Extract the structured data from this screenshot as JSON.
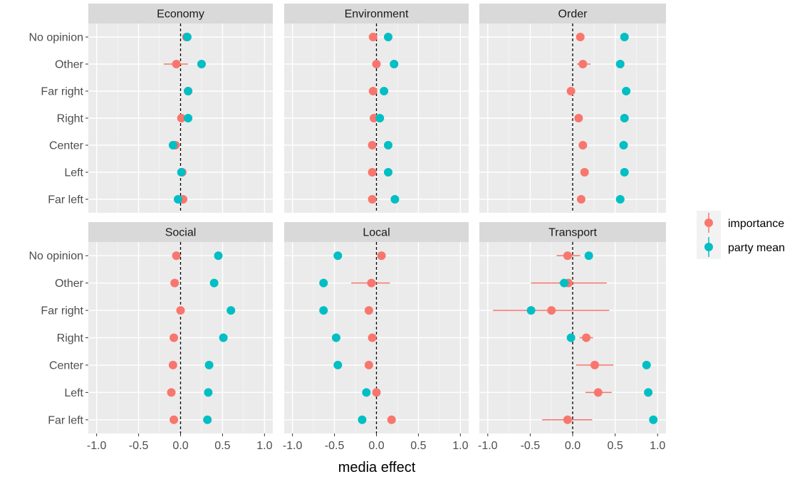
{
  "chart_data": {
    "type": "scatter",
    "subtype": "faceted-pointrange",
    "xlabel": "media effect",
    "xlim": [
      -1.0,
      1.0
    ],
    "x_ticks": [
      "-1.0",
      "-0.5",
      "0.0",
      "0.5",
      "1.0"
    ],
    "x_tick_values": [
      -1.0,
      -0.5,
      0.0,
      0.5,
      1.0
    ],
    "categories": [
      "No opinion",
      "Other",
      "Far right",
      "Right",
      "Center",
      "Left",
      "Far left"
    ],
    "reference_line_x": 0,
    "grid": true,
    "legend_position": "right",
    "legend": [
      {
        "key": "importance",
        "label": "importance",
        "color": "#F8766D"
      },
      {
        "key": "party_mean",
        "label": "party mean",
        "color": "#00BFC4"
      }
    ],
    "facets": [
      {
        "title": "Economy",
        "importance": [
          0.07,
          -0.05,
          0.09,
          0.01,
          -0.06,
          0.02,
          0.03
        ],
        "party_mean": [
          0.08,
          0.25,
          0.09,
          0.09,
          -0.09,
          0.01,
          -0.03
        ],
        "importance_ci": [
          null,
          [
            -0.2,
            0.09
          ],
          null,
          null,
          null,
          null,
          null
        ],
        "party_mean_ci": [
          null,
          null,
          null,
          null,
          null,
          null,
          null
        ]
      },
      {
        "title": "Environment",
        "importance": [
          -0.04,
          0.0,
          -0.04,
          -0.03,
          -0.05,
          -0.05,
          -0.05
        ],
        "party_mean": [
          0.14,
          0.21,
          0.09,
          0.04,
          0.14,
          0.14,
          0.22
        ],
        "importance_ci": [
          null,
          null,
          null,
          null,
          null,
          null,
          null
        ],
        "party_mean_ci": [
          null,
          null,
          null,
          null,
          null,
          null,
          null
        ]
      },
      {
        "title": "Order",
        "importance": [
          0.09,
          0.12,
          -0.02,
          0.07,
          0.12,
          0.14,
          0.1
        ],
        "party_mean": [
          0.61,
          0.56,
          0.63,
          0.61,
          0.6,
          0.61,
          0.56
        ],
        "importance_ci": [
          null,
          [
            0.05,
            0.21
          ],
          null,
          null,
          null,
          null,
          null
        ],
        "party_mean_ci": [
          null,
          null,
          null,
          null,
          null,
          null,
          null
        ]
      },
      {
        "title": "Social",
        "importance": [
          -0.05,
          -0.07,
          0.0,
          -0.08,
          -0.09,
          -0.11,
          -0.08
        ],
        "party_mean": [
          0.45,
          0.4,
          0.6,
          0.51,
          0.34,
          0.33,
          0.32
        ],
        "importance_ci": [
          null,
          null,
          null,
          null,
          null,
          null,
          null
        ],
        "party_mean_ci": [
          null,
          null,
          null,
          null,
          null,
          null,
          null
        ]
      },
      {
        "title": "Local",
        "importance": [
          0.06,
          -0.06,
          -0.09,
          -0.05,
          -0.09,
          0.0,
          0.18
        ],
        "party_mean": [
          -0.46,
          -0.63,
          -0.63,
          -0.48,
          -0.46,
          -0.12,
          -0.17
        ],
        "importance_ci": [
          null,
          [
            -0.3,
            0.16
          ],
          null,
          null,
          null,
          null,
          null
        ],
        "party_mean_ci": [
          null,
          null,
          null,
          null,
          null,
          null,
          null
        ]
      },
      {
        "title": "Transport",
        "importance": [
          -0.06,
          -0.05,
          -0.25,
          0.16,
          0.26,
          0.3,
          -0.06
        ],
        "party_mean": [
          0.19,
          -0.1,
          -0.49,
          -0.02,
          0.87,
          0.89,
          0.95
        ],
        "importance_ci": [
          [
            -0.19,
            0.09
          ],
          [
            -0.49,
            0.4
          ],
          [
            -0.94,
            0.43
          ],
          [
            0.08,
            0.24
          ],
          [
            0.04,
            0.48
          ],
          [
            0.15,
            0.46
          ],
          [
            -0.36,
            0.23
          ]
        ],
        "party_mean_ci": [
          null,
          [
            -0.16,
            -0.04
          ],
          null,
          null,
          null,
          null,
          null
        ]
      }
    ]
  }
}
